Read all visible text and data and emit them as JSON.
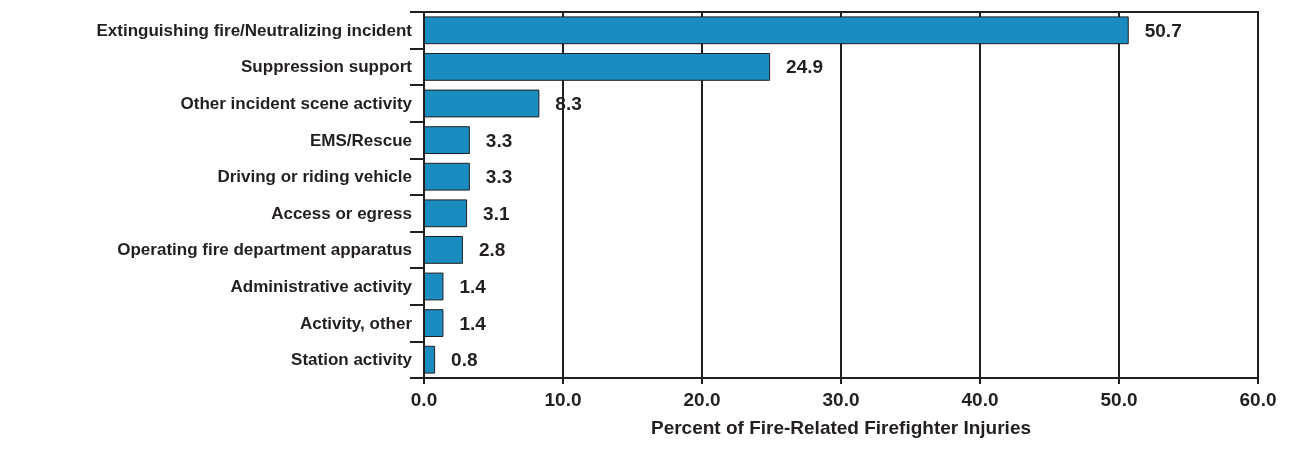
{
  "chart_data": {
    "type": "bar",
    "orientation": "horizontal",
    "xlabel": "Percent of Fire-Related Firefighter Injuries",
    "categories": [
      "Extinguishing fire/Neutralizing incident",
      "Suppression support",
      "Other incident scene activity",
      "EMS/Rescue",
      "Driving or riding vehicle",
      "Access or egress",
      "Operating fire department apparatus",
      "Administrative activity",
      "Activity, other",
      "Station activity"
    ],
    "values": [
      50.7,
      24.9,
      8.3,
      3.3,
      3.3,
      3.1,
      2.8,
      1.4,
      1.4,
      0.8
    ],
    "color": "#1a8cbf",
    "xlim": [
      0,
      60
    ],
    "xticks": [
      {
        "value": 0,
        "label": "0.0"
      },
      {
        "value": 10,
        "label": "10.0"
      },
      {
        "value": 20,
        "label": "20.0"
      },
      {
        "value": 30,
        "label": "30.0"
      },
      {
        "value": 40,
        "label": "40.0"
      },
      {
        "value": 50,
        "label": "50.0"
      },
      {
        "value": 60,
        "label": "60.0"
      }
    ],
    "grid": "x",
    "data_labels": true
  }
}
